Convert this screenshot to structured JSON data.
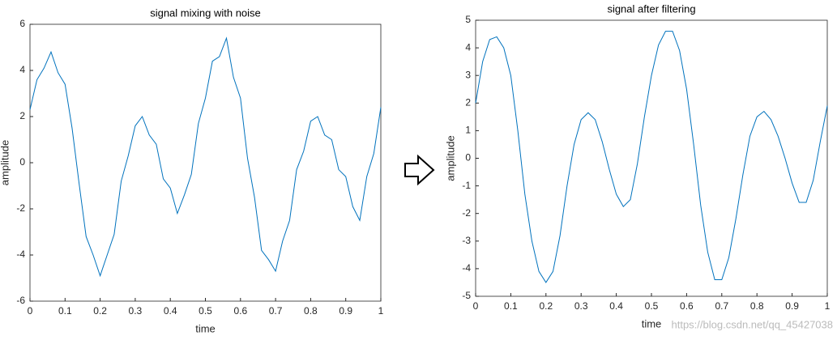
{
  "chart_data": [
    {
      "type": "line",
      "title": "signal mixing with noise",
      "x_label": "time",
      "y_label": "amplitude",
      "x": [
        0,
        0.02,
        0.04,
        0.06,
        0.08,
        0.1,
        0.12,
        0.14,
        0.16,
        0.18,
        0.2,
        0.22,
        0.24,
        0.26,
        0.28,
        0.3,
        0.32,
        0.34,
        0.36,
        0.38,
        0.4,
        0.42,
        0.44,
        0.46,
        0.48,
        0.5,
        0.52,
        0.54,
        0.56,
        0.58,
        0.6,
        0.62,
        0.64,
        0.66,
        0.68,
        0.7,
        0.72,
        0.74,
        0.76,
        0.78,
        0.8,
        0.82,
        0.84,
        0.86,
        0.88,
        0.9,
        0.92,
        0.94,
        0.96,
        0.98,
        1
      ],
      "values": [
        2.3,
        3.6,
        4.1,
        4.8,
        3.9,
        3.4,
        1.5,
        -0.9,
        -3.2,
        -4.0,
        -4.9,
        -4.0,
        -3.1,
        -0.8,
        0.3,
        1.6,
        2.0,
        1.2,
        0.8,
        -0.7,
        -1.1,
        -2.2,
        -1.4,
        -0.5,
        1.7,
        2.8,
        4.4,
        4.6,
        5.4,
        3.7,
        2.8,
        0.2,
        -1.5,
        -3.8,
        -4.2,
        -4.7,
        -3.4,
        -2.5,
        -0.3,
        0.5,
        1.8,
        2.0,
        1.2,
        1.0,
        -0.3,
        -0.6,
        -1.9,
        -2.5,
        -0.6,
        0.4,
        2.4
      ],
      "color": "#0072bd",
      "xlim": [
        0,
        1
      ],
      "ylim": [
        -6,
        6
      ],
      "xticks": [
        0,
        0.1,
        0.2,
        0.3,
        0.4,
        0.5,
        0.6,
        0.7,
        0.8,
        0.9,
        1
      ],
      "yticks": [
        -6,
        -4,
        -2,
        0,
        2,
        4,
        6
      ]
    },
    {
      "type": "line",
      "title": "signal after filtering",
      "x_label": "time",
      "y_label": "amplitude",
      "x": [
        0,
        0.02,
        0.04,
        0.06,
        0.08,
        0.1,
        0.12,
        0.14,
        0.16,
        0.18,
        0.2,
        0.22,
        0.24,
        0.26,
        0.28,
        0.3,
        0.32,
        0.34,
        0.36,
        0.38,
        0.4,
        0.42,
        0.44,
        0.46,
        0.48,
        0.5,
        0.52,
        0.54,
        0.56,
        0.58,
        0.6,
        0.62,
        0.64,
        0.66,
        0.68,
        0.7,
        0.72,
        0.74,
        0.76,
        0.78,
        0.8,
        0.82,
        0.84,
        0.86,
        0.88,
        0.9,
        0.92,
        0.94,
        0.96,
        0.98,
        1
      ],
      "values": [
        2.0,
        3.5,
        4.3,
        4.4,
        4.0,
        3.0,
        1.0,
        -1.3,
        -3.0,
        -4.1,
        -4.5,
        -4.1,
        -2.8,
        -1.0,
        0.5,
        1.4,
        1.65,
        1.4,
        0.6,
        -0.4,
        -1.3,
        -1.75,
        -1.5,
        -0.2,
        1.5,
        3.0,
        4.1,
        4.6,
        4.6,
        3.9,
        2.5,
        0.5,
        -1.7,
        -3.4,
        -4.4,
        -4.4,
        -3.6,
        -2.2,
        -0.6,
        0.8,
        1.5,
        1.7,
        1.4,
        0.8,
        0.0,
        -0.9,
        -1.6,
        -1.6,
        -0.8,
        0.6,
        1.9
      ],
      "color": "#0072bd",
      "xlim": [
        0,
        1
      ],
      "ylim": [
        -5,
        5
      ],
      "xticks": [
        0,
        0.1,
        0.2,
        0.3,
        0.4,
        0.5,
        0.6,
        0.7,
        0.8,
        0.9,
        1
      ],
      "yticks": [
        -5,
        -4,
        -3,
        -2,
        -1,
        0,
        1,
        2,
        3,
        4,
        5
      ]
    }
  ],
  "watermark": "https://blog.csdn.net/qq_45427038"
}
